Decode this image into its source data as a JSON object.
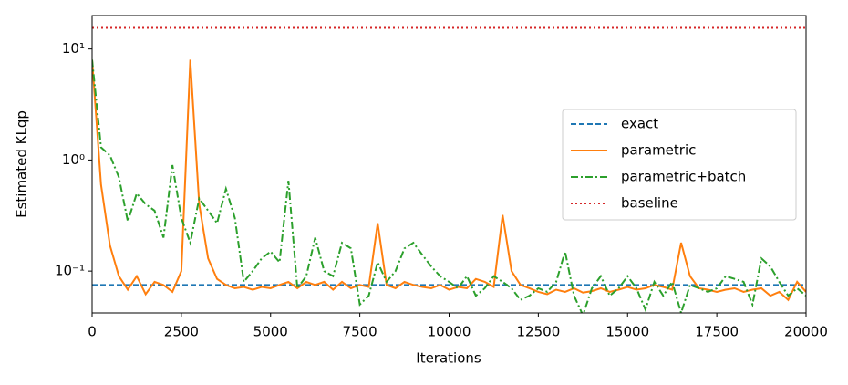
{
  "chart_data": {
    "type": "line",
    "x_label": "Iterations",
    "y_label": "Estimated KLqp",
    "log_y": true,
    "legend_position": "center right",
    "xlim": [
      0,
      20000
    ],
    "xticks": [
      0,
      2500,
      5000,
      7500,
      10000,
      12500,
      15000,
      17500,
      20000
    ],
    "ylim": [
      0.042,
      20
    ],
    "yticks": [
      {
        "value": 0.1,
        "label": "10⁻¹"
      },
      {
        "value": 1,
        "label": "10⁰"
      },
      {
        "value": 10,
        "label": "10¹"
      }
    ],
    "x": [
      0,
      250,
      500,
      750,
      1000,
      1250,
      1500,
      1750,
      2000,
      2250,
      2500,
      2750,
      3000,
      3250,
      3500,
      3750,
      4000,
      4250,
      4500,
      4750,
      5000,
      5250,
      5500,
      5750,
      6000,
      6250,
      6500,
      6750,
      7000,
      7250,
      7500,
      7750,
      8000,
      8250,
      8500,
      8750,
      9000,
      9250,
      9500,
      9750,
      10000,
      10250,
      10500,
      10750,
      11000,
      11250,
      11500,
      11750,
      12000,
      12250,
      12500,
      12750,
      13000,
      13250,
      13500,
      13750,
      14000,
      14250,
      14500,
      14750,
      15000,
      15250,
      15500,
      15750,
      16000,
      16250,
      16500,
      16750,
      17000,
      17250,
      17500,
      17750,
      18000,
      18250,
      18500,
      18750,
      19000,
      19250,
      19500,
      19750,
      20000
    ],
    "series": [
      {
        "name": "exact",
        "color": "#1f77b4",
        "style": "dashed",
        "value": 0.075
      },
      {
        "name": "parametric",
        "color": "#ff7f0e",
        "style": "solid",
        "values": [
          8,
          0.6,
          0.17,
          0.09,
          0.068,
          0.09,
          0.062,
          0.08,
          0.075,
          0.065,
          0.1,
          8,
          0.4,
          0.13,
          0.085,
          0.075,
          0.07,
          0.072,
          0.068,
          0.072,
          0.07,
          0.075,
          0.08,
          0.07,
          0.08,
          0.075,
          0.08,
          0.068,
          0.08,
          0.07,
          0.075,
          0.072,
          0.27,
          0.075,
          0.07,
          0.08,
          0.075,
          0.072,
          0.07,
          0.075,
          0.068,
          0.072,
          0.07,
          0.085,
          0.08,
          0.072,
          0.32,
          0.1,
          0.075,
          0.07,
          0.065,
          0.062,
          0.068,
          0.065,
          0.07,
          0.064,
          0.066,
          0.07,
          0.065,
          0.068,
          0.072,
          0.068,
          0.07,
          0.075,
          0.072,
          0.068,
          0.18,
          0.09,
          0.07,
          0.068,
          0.065,
          0.068,
          0.07,
          0.065,
          0.068,
          0.07,
          0.06,
          0.065,
          0.055,
          0.08,
          0.065
        ]
      },
      {
        "name": "parametric+batch",
        "color": "#2ca02c",
        "style": "dashdot",
        "values": [
          8,
          1.3,
          1.1,
          0.7,
          0.28,
          0.5,
          0.4,
          0.35,
          0.2,
          0.9,
          0.3,
          0.18,
          0.45,
          0.35,
          0.27,
          0.55,
          0.3,
          0.08,
          0.1,
          0.13,
          0.15,
          0.12,
          0.65,
          0.07,
          0.09,
          0.2,
          0.1,
          0.09,
          0.18,
          0.16,
          0.05,
          0.06,
          0.12,
          0.08,
          0.1,
          0.16,
          0.18,
          0.14,
          0.11,
          0.09,
          0.08,
          0.07,
          0.09,
          0.06,
          0.07,
          0.09,
          0.08,
          0.07,
          0.055,
          0.06,
          0.07,
          0.065,
          0.08,
          0.15,
          0.06,
          0.04,
          0.07,
          0.09,
          0.06,
          0.07,
          0.09,
          0.07,
          0.045,
          0.08,
          0.06,
          0.08,
          0.042,
          0.075,
          0.07,
          0.065,
          0.07,
          0.09,
          0.085,
          0.08,
          0.05,
          0.13,
          0.11,
          0.08,
          0.06,
          0.07,
          0.06
        ]
      },
      {
        "name": "baseline",
        "color": "#d62728",
        "style": "dotted",
        "value": 15.5
      }
    ]
  }
}
